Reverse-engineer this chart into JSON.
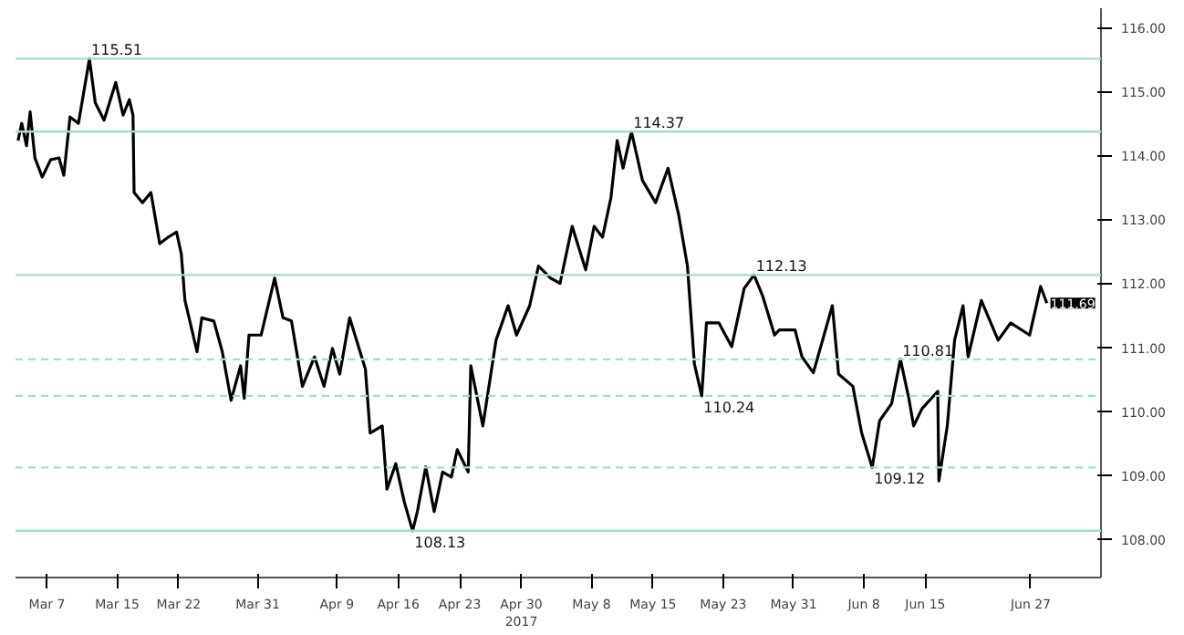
{
  "chart_data": {
    "type": "line",
    "x": [
      "2017-03-03T17:00",
      "2017-03-04T03:00",
      "2017-03-04T16:00",
      "2017-03-05T02:00",
      "2017-03-05T15:00",
      "2017-03-06T11:00",
      "2017-03-07T10:00",
      "2017-03-08T09:00",
      "2017-03-08T22:00",
      "2017-03-09T15:00",
      "2017-03-10T14:00",
      "2017-03-11T20:00",
      "2017-03-12T12:00",
      "2017-03-13T12:00",
      "2017-03-14T20:00",
      "2017-03-15T16:00",
      "2017-03-16T09:00",
      "2017-03-16T19:00",
      "2017-03-16T22:00",
      "2017-03-17T21:00",
      "2017-03-18T20:00",
      "2017-03-19T20:00",
      "2017-03-20T19:00",
      "2017-03-21T18:00",
      "2017-03-22T07:00",
      "2017-03-22T17:00",
      "2017-03-24T02:00",
      "2017-03-24T15:00",
      "2017-03-26T00:00",
      "2017-03-26T23:00",
      "2017-03-27T23:00",
      "2017-03-29T01:00",
      "2017-03-29T11:00",
      "2017-03-30T00:00",
      "2017-03-31T09:00",
      "2017-04-01T22:00",
      "2017-04-02T21:00",
      "2017-04-03T20:00",
      "2017-04-05T02:00",
      "2017-04-06T11:00",
      "2017-04-07T13:00",
      "2017-04-08T12:00",
      "2017-04-09T08:00",
      "2017-04-10T11:00",
      "2017-04-12T06:00",
      "2017-04-12T19:00",
      "2017-04-14T04:00",
      "2017-04-14T17:00",
      "2017-04-15T17:00",
      "2017-04-16T16:00",
      "2017-04-17T15:00",
      "2017-04-18T04:00",
      "2017-04-19T03:00",
      "2017-04-20T02:00",
      "2017-04-21T01:00",
      "2017-04-22T01:00",
      "2017-04-22T17:00",
      "2017-04-23T23:00",
      "2017-04-24T06:00",
      "2017-04-25T15:00",
      "2017-04-27T03:00",
      "2017-04-28T12:00",
      "2017-04-29T11:00",
      "2017-04-30T23:00",
      "2017-05-01T23:00",
      "2017-05-03T08:00",
      "2017-05-04T10:00",
      "2017-05-05T19:00",
      "2017-05-07T08:00",
      "2017-05-08T07:00",
      "2017-05-09T06:00",
      "2017-05-10T05:00",
      "2017-05-10T22:00",
      "2017-05-11T14:00",
      "2017-05-12T13:00",
      "2017-05-13T19:00",
      "2017-05-15T07:00",
      "2017-05-16T17:00",
      "2017-05-17T22:00",
      "2017-05-18T22:00",
      "2017-05-19T17:00",
      "2017-05-20T13:00",
      "2017-05-21T02:00",
      "2017-05-22T12:00",
      "2017-05-23T23:00",
      "2017-05-25T09:00",
      "2017-05-26T12:00",
      "2017-05-27T11:00",
      "2017-05-28T20:00",
      "2017-05-29T09:00",
      "2017-05-31T04:00",
      "2017-05-31T23:00",
      "2017-06-02T06:00",
      "2017-06-04T10:00",
      "2017-06-05T03:00",
      "2017-06-06T18:00",
      "2017-06-07T18:00",
      "2017-06-08T23:00",
      "2017-06-09T19:00",
      "2017-06-11T04:00",
      "2017-06-12T04:00",
      "2017-06-13T03:00",
      "2017-06-13T16:00",
      "2017-06-14T15:00",
      "2017-06-16T10:00",
      "2017-06-16T13:00",
      "2017-06-17T12:00",
      "2017-06-18T08:00",
      "2017-06-19T07:00",
      "2017-06-19T21:00",
      "2017-06-21T09:00",
      "2017-06-23T07:00",
      "2017-06-24T17:00",
      "2017-06-26T21:00",
      "2017-06-28T03:00",
      "2017-06-28T20:00"
    ],
    "series": [
      {
        "color": "#000000",
        "values": [
          114.23,
          114.5,
          114.15,
          114.68,
          113.96,
          113.66,
          113.93,
          113.96,
          113.69,
          114.6,
          114.5,
          115.51,
          114.82,
          114.55,
          115.14,
          114.63,
          114.87,
          114.63,
          113.42,
          113.26,
          113.42,
          112.62,
          112.72,
          112.8,
          112.46,
          111.73,
          110.93,
          111.46,
          111.41,
          110.93,
          110.17,
          110.71,
          110.2,
          111.19,
          111.19,
          112.08,
          111.46,
          111.41,
          110.39,
          110.85,
          110.39,
          110.98,
          110.58,
          111.46,
          110.66,
          109.66,
          109.77,
          108.78,
          109.18,
          108.59,
          108.13,
          108.43,
          109.13,
          108.43,
          109.05,
          108.97,
          109.4,
          109.05,
          110.71,
          109.77,
          111.11,
          111.65,
          111.19,
          111.65,
          112.27,
          112.08,
          112.0,
          112.89,
          112.21,
          112.89,
          112.72,
          113.34,
          114.23,
          113.8,
          114.37,
          113.61,
          113.26,
          113.8,
          113.07,
          112.27,
          110.74,
          110.24,
          111.38,
          111.38,
          111.01,
          111.92,
          112.13,
          111.81,
          111.19,
          111.27,
          111.27,
          110.85,
          110.6,
          111.65,
          110.58,
          110.39,
          109.66,
          109.12,
          109.85,
          110.12,
          110.81,
          110.2,
          109.77,
          110.04,
          110.31,
          108.91,
          109.77,
          111.11,
          111.65,
          110.85,
          111.73,
          111.11,
          111.38,
          111.19,
          111.95,
          111.69
        ]
      }
    ],
    "xlim": [
      "2017-03-03T10:00",
      "2017-07-05T00:00"
    ],
    "xticks": [
      {
        "value": "2017-03-07",
        "label": "Mar 7"
      },
      {
        "value": "2017-03-15",
        "label": "Mar 15"
      },
      {
        "value": "2017-03-22",
        "label": "Mar 22"
      },
      {
        "value": "2017-03-31",
        "label": "Mar 31"
      },
      {
        "value": "2017-04-09",
        "label": "Apr 9"
      },
      {
        "value": "2017-04-16",
        "label": "Apr 16"
      },
      {
        "value": "2017-04-23",
        "label": "Apr 23"
      },
      {
        "value": "2017-04-30",
        "label": "Apr 30\n2017"
      },
      {
        "value": "2017-05-08",
        "label": "May 8"
      },
      {
        "value": "2017-05-15",
        "label": "May 15"
      },
      {
        "value": "2017-05-23",
        "label": "May 23"
      },
      {
        "value": "2017-05-31",
        "label": "May 31"
      },
      {
        "value": "2017-06-08",
        "label": "Jun 8"
      },
      {
        "value": "2017-06-15",
        "label": "Jun 15"
      },
      {
        "value": "2017-06-27",
        "label": "Jun 27"
      }
    ],
    "ylim": [
      107.4,
      116.3
    ],
    "yticks": [
      {
        "value": 108,
        "label": "108.00"
      },
      {
        "value": 109,
        "label": "109.00"
      },
      {
        "value": 110,
        "label": "110.00"
      },
      {
        "value": 111,
        "label": "111.00"
      },
      {
        "value": 112,
        "label": "112.00"
      },
      {
        "value": 113,
        "label": "113.00"
      },
      {
        "value": 114,
        "label": "114.00"
      },
      {
        "value": 115,
        "label": "115.00"
      },
      {
        "value": 116,
        "label": "116.00"
      }
    ],
    "ref_lines": [
      {
        "axis": "y",
        "value": 115.51,
        "color": "#a6dcc9",
        "line_style": "solid"
      },
      {
        "axis": "y",
        "value": 114.37,
        "color": "#a6dcc9",
        "line_style": "solid"
      },
      {
        "axis": "y",
        "value": 112.13,
        "color": "#a6dcc9",
        "line_style": "solid"
      },
      {
        "axis": "y",
        "value": 110.81,
        "color": "#a6dcc9",
        "line_style": "dashed"
      },
      {
        "axis": "y",
        "value": 110.24,
        "color": "#a6dcc9",
        "line_style": "dashed"
      },
      {
        "axis": "y",
        "value": 109.12,
        "color": "#a6dcc9",
        "line_style": "dashed"
      },
      {
        "axis": "y",
        "value": 108.13,
        "color": "#a6dcc9",
        "line_style": "solid"
      }
    ],
    "annotations": [
      {
        "text": "115.51",
        "x": "2017-03-11T20:00",
        "y": 115.51
      },
      {
        "text": "108.13",
        "x": "2017-04-17T15:00",
        "y": 108.13
      },
      {
        "text": "114.37",
        "x": "2017-05-12T13:00",
        "y": 114.37
      },
      {
        "text": "110.24",
        "x": "2017-05-20T13:00",
        "y": 110.24
      },
      {
        "text": "112.13",
        "x": "2017-05-26T12:00",
        "y": 112.13
      },
      {
        "text": "109.12",
        "x": "2017-06-08T23:00",
        "y": 109.12
      },
      {
        "text": "110.81",
        "x": "2017-06-12T04:00",
        "y": 110.81
      },
      {
        "text": "111.69",
        "x": "2017-06-28T20:00",
        "y": 111.69
      }
    ],
    "grid": false,
    "line_style": "solid",
    "marker": "none"
  }
}
